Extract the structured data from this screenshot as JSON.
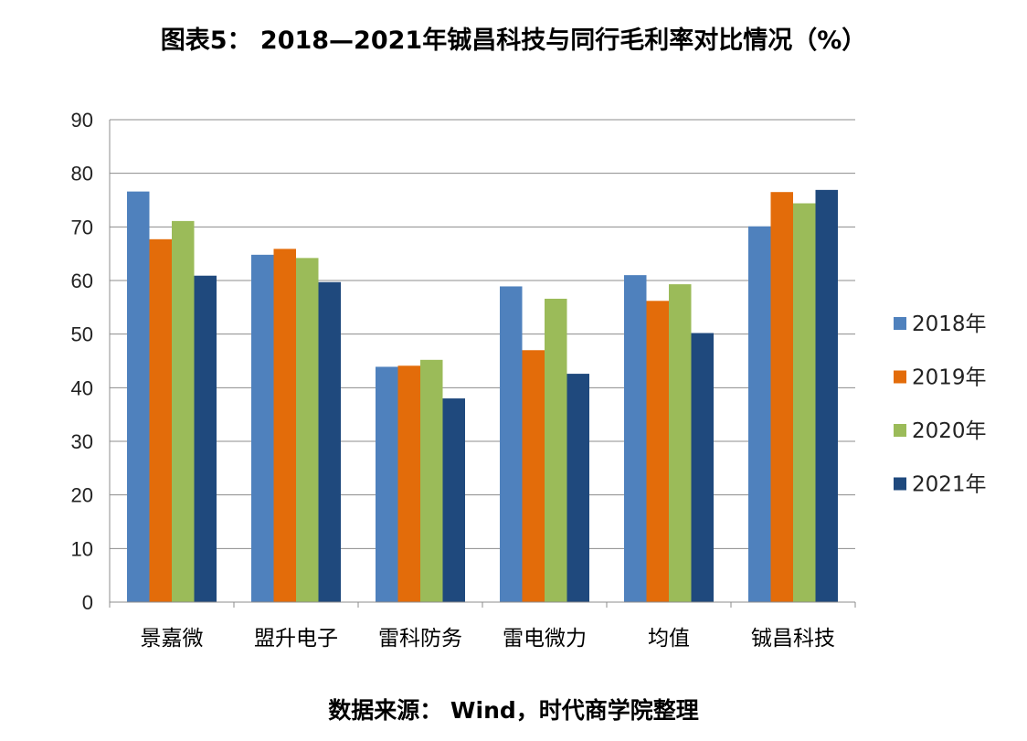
{
  "title": "图表5： 2018—2021年铖昌科技与同行毛利率对比情况（%）",
  "source": "数据来源： Wind，时代商学院整理",
  "chart_data": {
    "type": "bar",
    "categories": [
      "景嘉微",
      "盟升电子",
      "雷科防务",
      "雷电微力",
      "均值",
      "铖昌科技"
    ],
    "series": [
      {
        "name": "2018年",
        "color": "#4F81BD",
        "values": [
          76.6,
          64.8,
          43.9,
          58.9,
          61.0,
          70.1
        ]
      },
      {
        "name": "2019年",
        "color": "#E36C0A",
        "values": [
          67.7,
          65.9,
          44.1,
          47.0,
          56.2,
          76.5
        ]
      },
      {
        "name": "2020年",
        "color": "#9BBB59",
        "values": [
          71.1,
          64.2,
          45.2,
          56.6,
          59.3,
          74.4
        ]
      },
      {
        "name": "2021年",
        "color": "#1F497D",
        "values": [
          60.9,
          59.7,
          38.0,
          42.6,
          50.2,
          76.9
        ]
      }
    ],
    "ylim": [
      0,
      90
    ],
    "yticks": [
      0,
      10,
      20,
      30,
      40,
      50,
      60,
      70,
      80,
      90
    ],
    "grid": true,
    "legend_position": "right"
  }
}
